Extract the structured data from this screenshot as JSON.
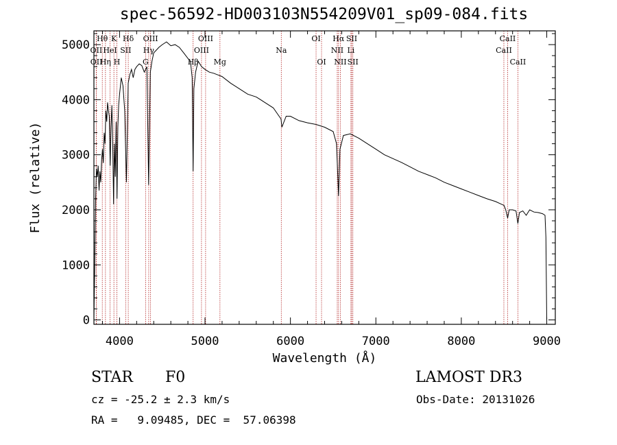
{
  "header": {
    "title": "spec-56592-HD003103N554209V01_sp09-084.fits"
  },
  "info": {
    "class": "STAR",
    "subclass": "F0",
    "survey": "LAMOST DR3",
    "cz": "cz = -25.2 ± 2.3 km/s",
    "obs_date": "Obs-Date: 20131026",
    "coords": "RA =   9.09485, DEC =  57.06398"
  },
  "colors": {
    "spectrum": "#000000",
    "lines": "#b22222",
    "axis": "#000000"
  },
  "chart_data": {
    "type": "line",
    "title": "spec-56592-HD003103N554209V01_sp09-084.fits",
    "xlabel": "Wavelength (Å)",
    "ylabel": "Flux (relative)",
    "xlim": [
      3700,
      9100
    ],
    "ylim": [
      -80,
      5250
    ],
    "xticks": [
      4000,
      5000,
      6000,
      7000,
      8000,
      9000
    ],
    "yticks": [
      0,
      1000,
      2000,
      3000,
      4000,
      5000
    ],
    "series": [
      {
        "name": "flux",
        "x": [
          3700,
          3710,
          3720,
          3730,
          3740,
          3750,
          3760,
          3770,
          3780,
          3790,
          3800,
          3810,
          3820,
          3830,
          3840,
          3850,
          3860,
          3870,
          3880,
          3890,
          3900,
          3910,
          3920,
          3930,
          3940,
          3950,
          3960,
          3970,
          3980,
          3990,
          4000,
          4020,
          4040,
          4060,
          4080,
          4101,
          4120,
          4140,
          4160,
          4180,
          4200,
          4230,
          4260,
          4290,
          4320,
          4340,
          4360,
          4380,
          4400,
          4430,
          4460,
          4500,
          4550,
          4600,
          4650,
          4700,
          4750,
          4800,
          4830,
          4850,
          4861,
          4870,
          4890,
          4920,
          4960,
          5000,
          5050,
          5100,
          5150,
          5200,
          5300,
          5400,
          5500,
          5600,
          5700,
          5800,
          5890,
          5900,
          5950,
          6000,
          6100,
          6200,
          6300,
          6400,
          6500,
          6540,
          6563,
          6580,
          6620,
          6700,
          6800,
          6900,
          7000,
          7100,
          7200,
          7300,
          7400,
          7500,
          7600,
          7700,
          7800,
          7900,
          8000,
          8100,
          8200,
          8300,
          8400,
          8500,
          8520,
          8542,
          8560,
          8600,
          8640,
          8662,
          8680,
          8720,
          8760,
          8800,
          8850,
          8900,
          8950,
          8980,
          8990,
          9000
        ],
        "y": [
          50,
          1000,
          2200,
          2750,
          2600,
          2800,
          2350,
          2700,
          2500,
          2900,
          3100,
          2850,
          3400,
          3200,
          3800,
          3600,
          3950,
          3800,
          3700,
          2800,
          3500,
          3900,
          3200,
          2100,
          3200,
          2600,
          3600,
          2200,
          3500,
          3900,
          4100,
          4400,
          4250,
          3800,
          2500,
          4300,
          4450,
          4550,
          4400,
          4550,
          4600,
          4650,
          4620,
          4500,
          4600,
          2450,
          4500,
          4700,
          4850,
          4900,
          4950,
          5000,
          5050,
          4980,
          5000,
          4950,
          4850,
          4750,
          4700,
          4400,
          2700,
          4200,
          4500,
          4700,
          4600,
          4550,
          4500,
          4480,
          4450,
          4420,
          4300,
          4200,
          4100,
          4050,
          3950,
          3850,
          3650,
          3500,
          3700,
          3700,
          3620,
          3580,
          3550,
          3500,
          3420,
          3200,
          2250,
          3100,
          3350,
          3380,
          3300,
          3200,
          3100,
          3000,
          2930,
          2860,
          2780,
          2700,
          2640,
          2580,
          2500,
          2440,
          2380,
          2320,
          2260,
          2200,
          2150,
          2080,
          2000,
          1850,
          2000,
          2000,
          1980,
          1750,
          1950,
          1980,
          1900,
          2000,
          1960,
          1950,
          1930,
          1900,
          1500,
          0
        ]
      }
    ],
    "annotations": [
      {
        "label": "Hθ",
        "wl": 3798,
        "row": 0
      },
      {
        "label": "OII",
        "wl": 3727,
        "row": 1
      },
      {
        "label": "OII",
        "wl": 3729,
        "row": 2
      },
      {
        "label": "Hη",
        "wl": 3835,
        "row": 2
      },
      {
        "label": "HeI",
        "wl": 3889,
        "row": 1
      },
      {
        "label": "K",
        "wl": 3934,
        "row": 0
      },
      {
        "label": "H",
        "wl": 3969,
        "row": 2
      },
      {
        "label": "Hδ",
        "wl": 4102,
        "row": 0
      },
      {
        "label": "SII",
        "wl": 4072,
        "row": 1
      },
      {
        "label": "OIII",
        "wl": 4363,
        "row": 0
      },
      {
        "label": "Hγ",
        "wl": 4341,
        "row": 1
      },
      {
        "label": "G",
        "wl": 4305,
        "row": 2
      },
      {
        "label": "OIII",
        "wl": 5007,
        "row": 0
      },
      {
        "label": "OIII",
        "wl": 4959,
        "row": 1
      },
      {
        "label": "Hβ",
        "wl": 4861,
        "row": 2
      },
      {
        "label": "Mg",
        "wl": 5175,
        "row": 2
      },
      {
        "label": "Na",
        "wl": 5893,
        "row": 1
      },
      {
        "label": "OI",
        "wl": 6300,
        "row": 0
      },
      {
        "label": "OI",
        "wl": 6364,
        "row": 2
      },
      {
        "label": "Hα",
        "wl": 6563,
        "row": 0
      },
      {
        "label": "NII",
        "wl": 6548,
        "row": 1
      },
      {
        "label": "NII",
        "wl": 6584,
        "row": 2
      },
      {
        "label": "SII",
        "wl": 6717,
        "row": 0
      },
      {
        "label": "Li",
        "wl": 6708,
        "row": 1
      },
      {
        "label": "SII",
        "wl": 6731,
        "row": 2
      },
      {
        "label": "CaII",
        "wl": 8542,
        "row": 0
      },
      {
        "label": "CaII",
        "wl": 8498,
        "row": 1
      },
      {
        "label": "CaII",
        "wl": 8662,
        "row": 2
      }
    ]
  }
}
